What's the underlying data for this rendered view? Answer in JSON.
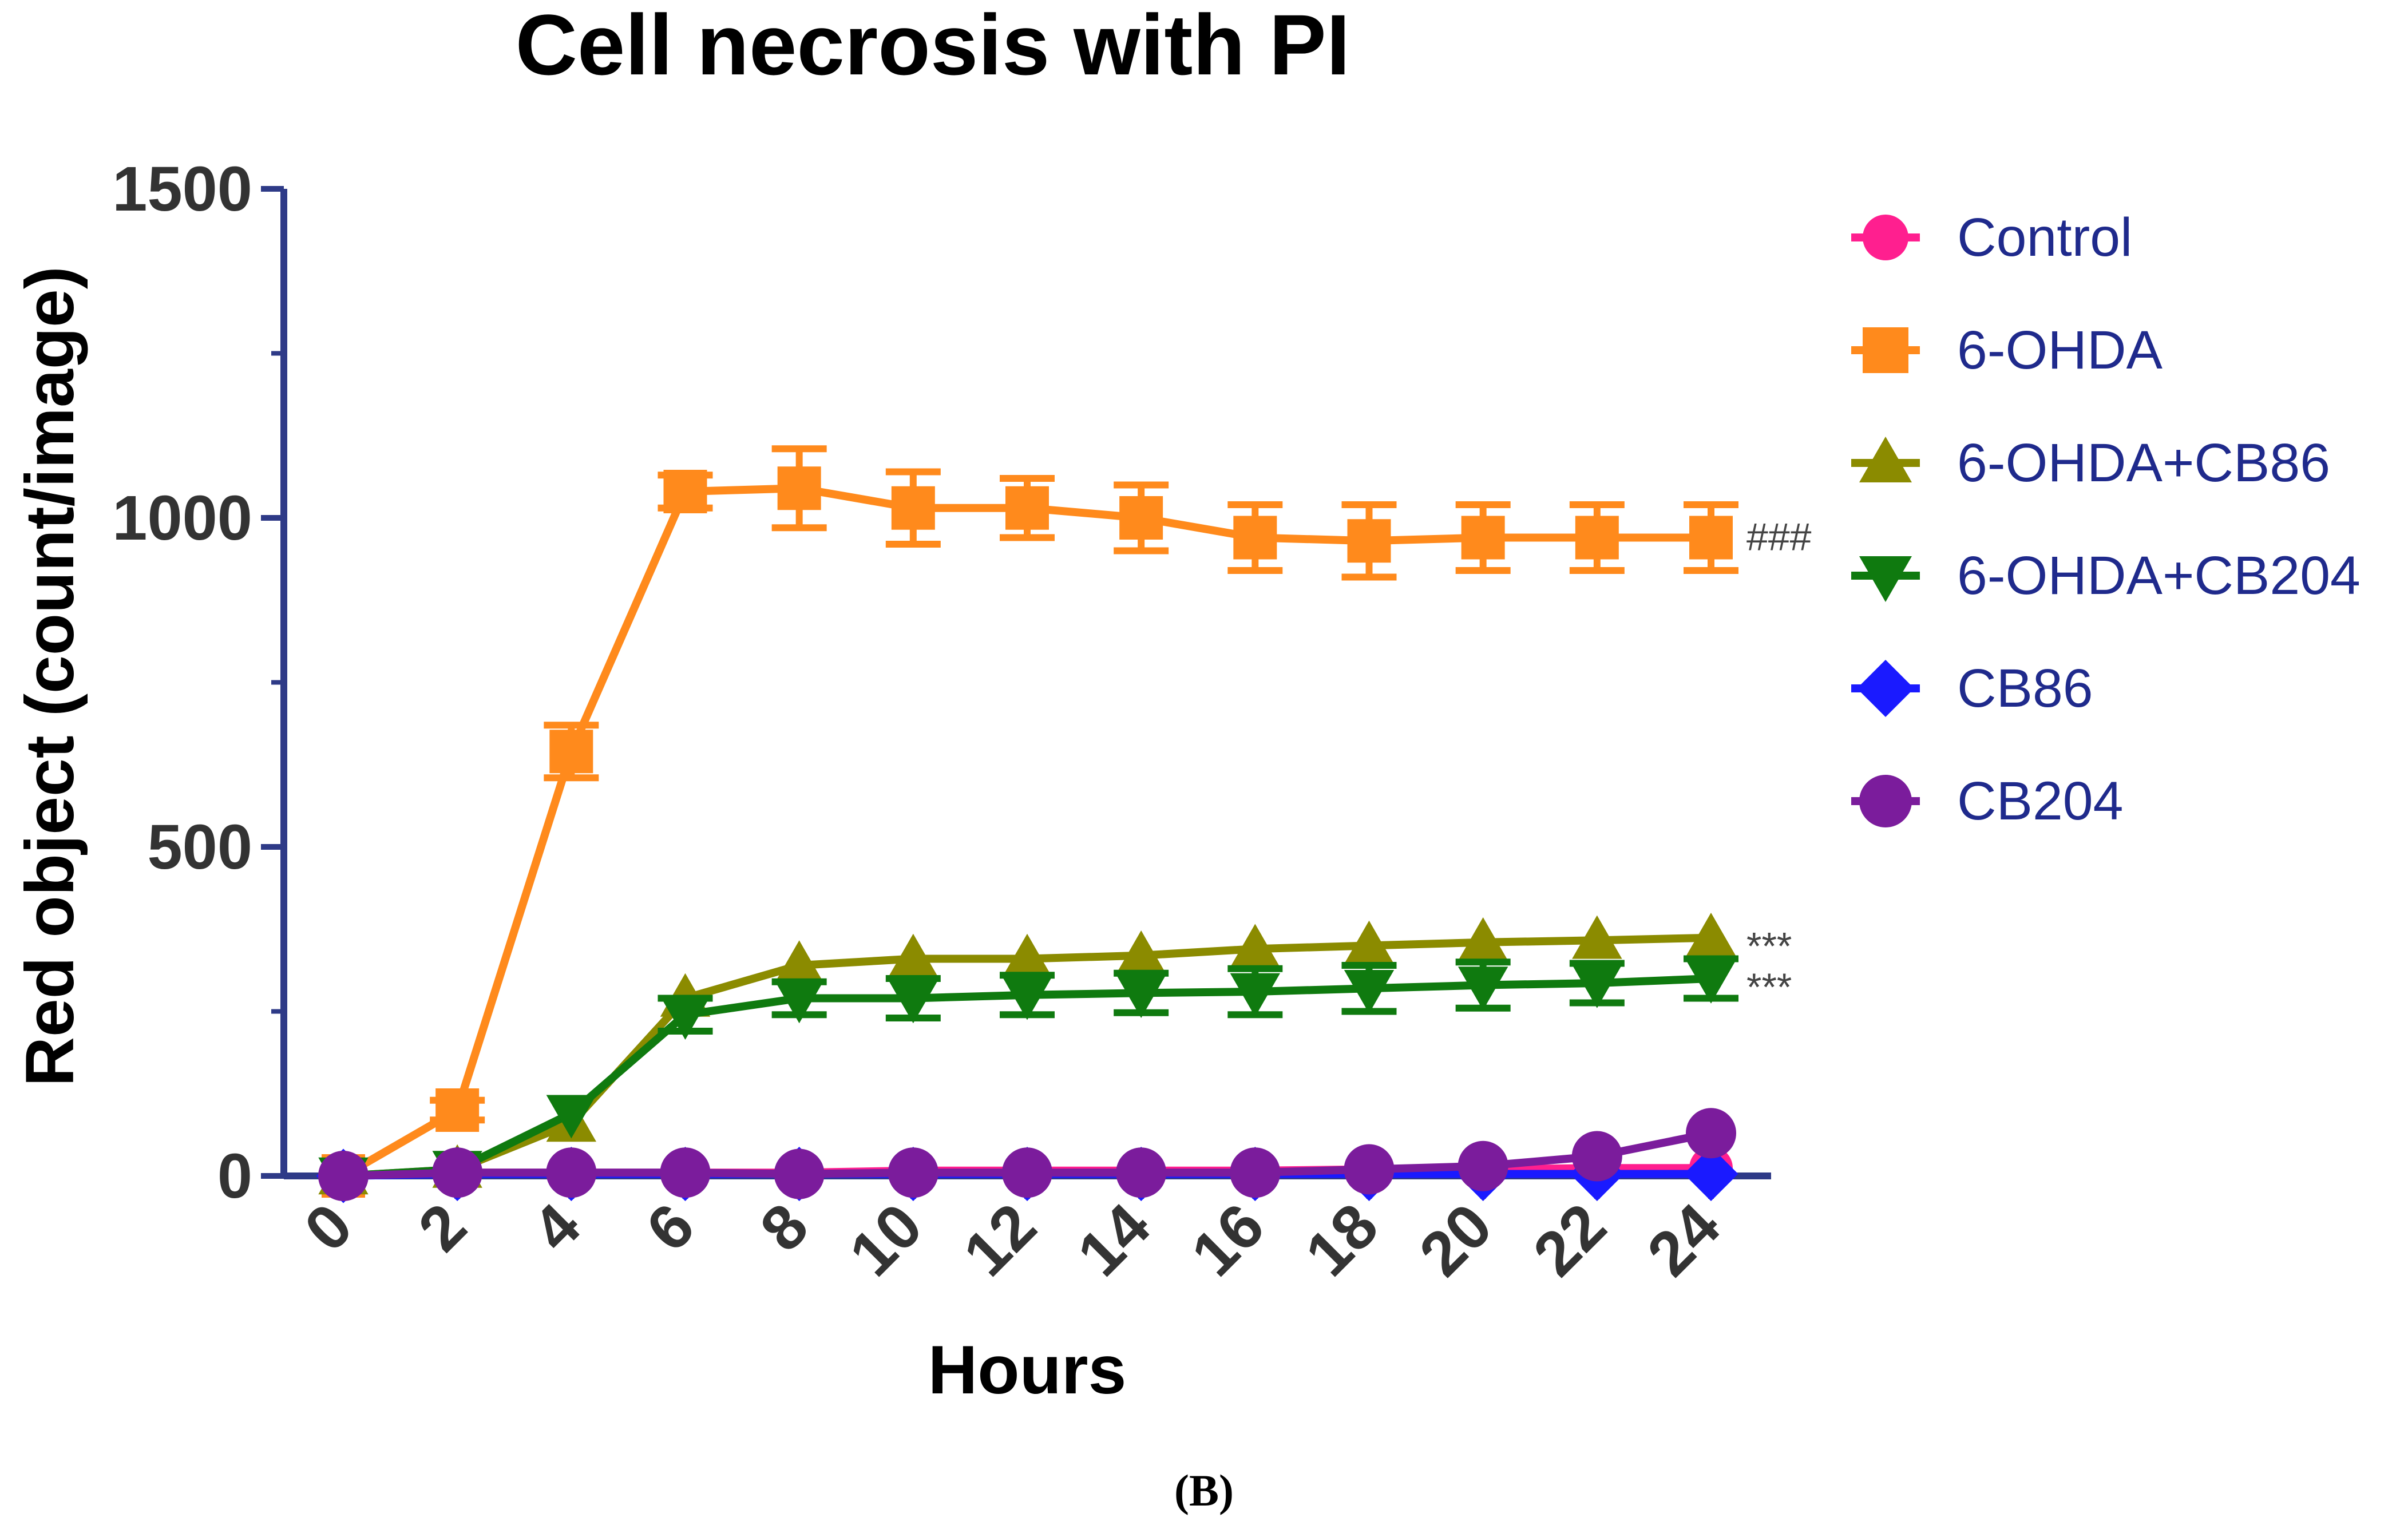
{
  "chart_data": {
    "type": "line",
    "title": "Cell necrosis with PI",
    "xlabel": "Hours",
    "ylabel": "Red object (count/image)",
    "xlim": [
      0,
      24
    ],
    "ylim": [
      0,
      1500
    ],
    "x_ticks": [
      0,
      2,
      4,
      6,
      8,
      10,
      12,
      14,
      16,
      18,
      20,
      22,
      24
    ],
    "y_ticks": [
      0,
      500,
      1000,
      1500
    ],
    "x": [
      0,
      2,
      4,
      6,
      8,
      10,
      12,
      14,
      16,
      18,
      20,
      22,
      24
    ],
    "legend_position": "right",
    "grid": false,
    "series": [
      {
        "name": "Control",
        "color": "#ff1f8f",
        "marker": "circle",
        "values": [
          0,
          5,
          5,
          5,
          5,
          8,
          8,
          8,
          8,
          10,
          10,
          12,
          12
        ],
        "errors": [
          0,
          0,
          0,
          0,
          0,
          0,
          0,
          0,
          0,
          0,
          0,
          0,
          0
        ]
      },
      {
        "name": "6-OHDA",
        "color": "#ff8a1c",
        "marker": "square",
        "values": [
          0,
          100,
          645,
          1040,
          1045,
          1015,
          1015,
          1000,
          970,
          965,
          970,
          970,
          970
        ],
        "errors": [
          0,
          15,
          40,
          25,
          60,
          55,
          45,
          50,
          50,
          55,
          50,
          50,
          50
        ]
      },
      {
        "name": "6-OHDA+CB86",
        "color": "#8b8b00",
        "marker": "triangle-up",
        "values": [
          0,
          10,
          80,
          270,
          320,
          330,
          330,
          335,
          345,
          350,
          355,
          358,
          362
        ],
        "errors": [
          0,
          0,
          0,
          0,
          0,
          0,
          0,
          0,
          0,
          0,
          0,
          0,
          0
        ]
      },
      {
        "name": "6-OHDA+CB204",
        "color": "#0f7a0f",
        "marker": "triangle-down",
        "values": [
          0,
          10,
          95,
          245,
          270,
          270,
          275,
          278,
          280,
          285,
          290,
          293,
          300
        ],
        "errors": [
          0,
          0,
          0,
          25,
          25,
          30,
          30,
          30,
          35,
          35,
          35,
          30,
          30
        ]
      },
      {
        "name": "CB86",
        "color": "#1a1aff",
        "marker": "diamond",
        "values": [
          0,
          3,
          3,
          3,
          3,
          3,
          3,
          3,
          3,
          3,
          3,
          3,
          3
        ],
        "errors": [
          0,
          0,
          0,
          0,
          0,
          0,
          0,
          0,
          0,
          0,
          0,
          0,
          0
        ]
      },
      {
        "name": "CB204",
        "color": "#7b1c9c",
        "marker": "circle",
        "values": [
          0,
          5,
          5,
          5,
          3,
          5,
          5,
          5,
          5,
          10,
          15,
          30,
          65
        ],
        "errors": [
          0,
          0,
          0,
          0,
          0,
          0,
          0,
          0,
          0,
          0,
          0,
          0,
          0
        ]
      }
    ],
    "annotations": [
      {
        "text": "###",
        "series": "6-OHDA"
      },
      {
        "text": "***",
        "series": "6-OHDA+CB86"
      },
      {
        "text": "***",
        "series": "6-OHDA+CB204"
      }
    ]
  },
  "caption": "(B)"
}
